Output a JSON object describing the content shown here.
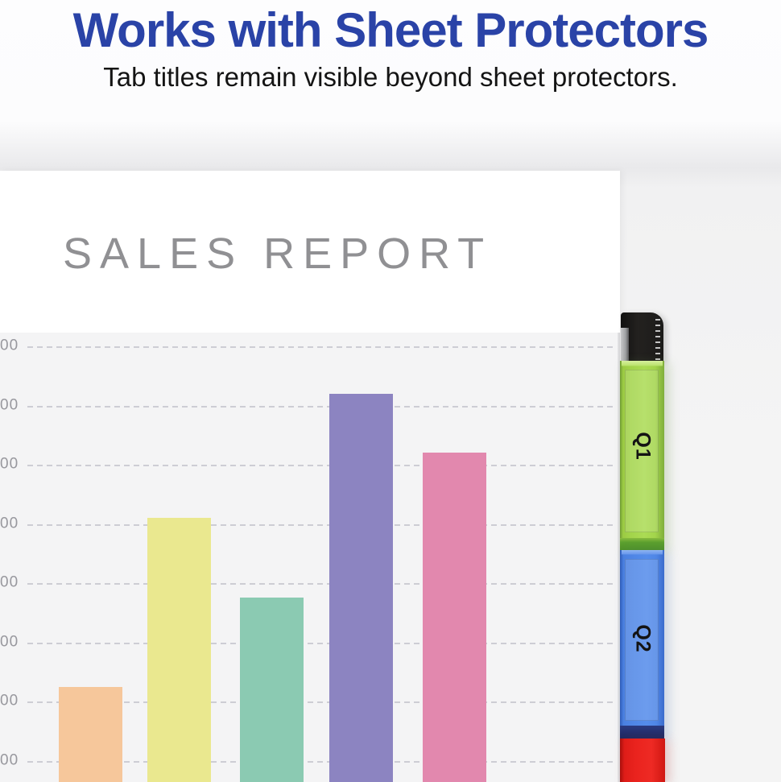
{
  "header": {
    "title": "Works with Sheet Protectors",
    "subtitle": "Tab titles remain visible beyond sheet protectors."
  },
  "sheet": {
    "title": "SALES REPORT"
  },
  "tabs": [
    {
      "label": "Q1",
      "color": "#a3d44b"
    },
    {
      "label": "Q2",
      "color": "#4f86e6"
    },
    {
      "label": "",
      "color": "#ea231e"
    }
  ],
  "binder": {
    "spine_color": "#1d1c1a"
  },
  "chart_data": {
    "type": "bar",
    "title": "SALES REPORT",
    "values": [
      225,
      510,
      375,
      720,
      620
    ],
    "values_estimated": true,
    "bar_colors": [
      "#f6c79b",
      "#eae88f",
      "#8bcab2",
      "#8c84c1",
      "#e288ae"
    ],
    "ytick_labels": [
      "00",
      "00",
      "00",
      "00",
      "00",
      "00",
      "00",
      "00"
    ],
    "yticks_note": "tick labels cropped by left image edge; only trailing 00 digits visible",
    "ylim_visible": [
      100,
      800
    ],
    "grid": true,
    "gridline_style": "dashed",
    "x_labels_visible": false,
    "plot_bg": "#f4f4f5"
  },
  "colors": {
    "headline": "#2a43a7",
    "subtitle": "#141414",
    "report_title": "#909093",
    "gridline": "#c6c6ce",
    "page": "#ffffff",
    "background": "#f4f4f4"
  }
}
